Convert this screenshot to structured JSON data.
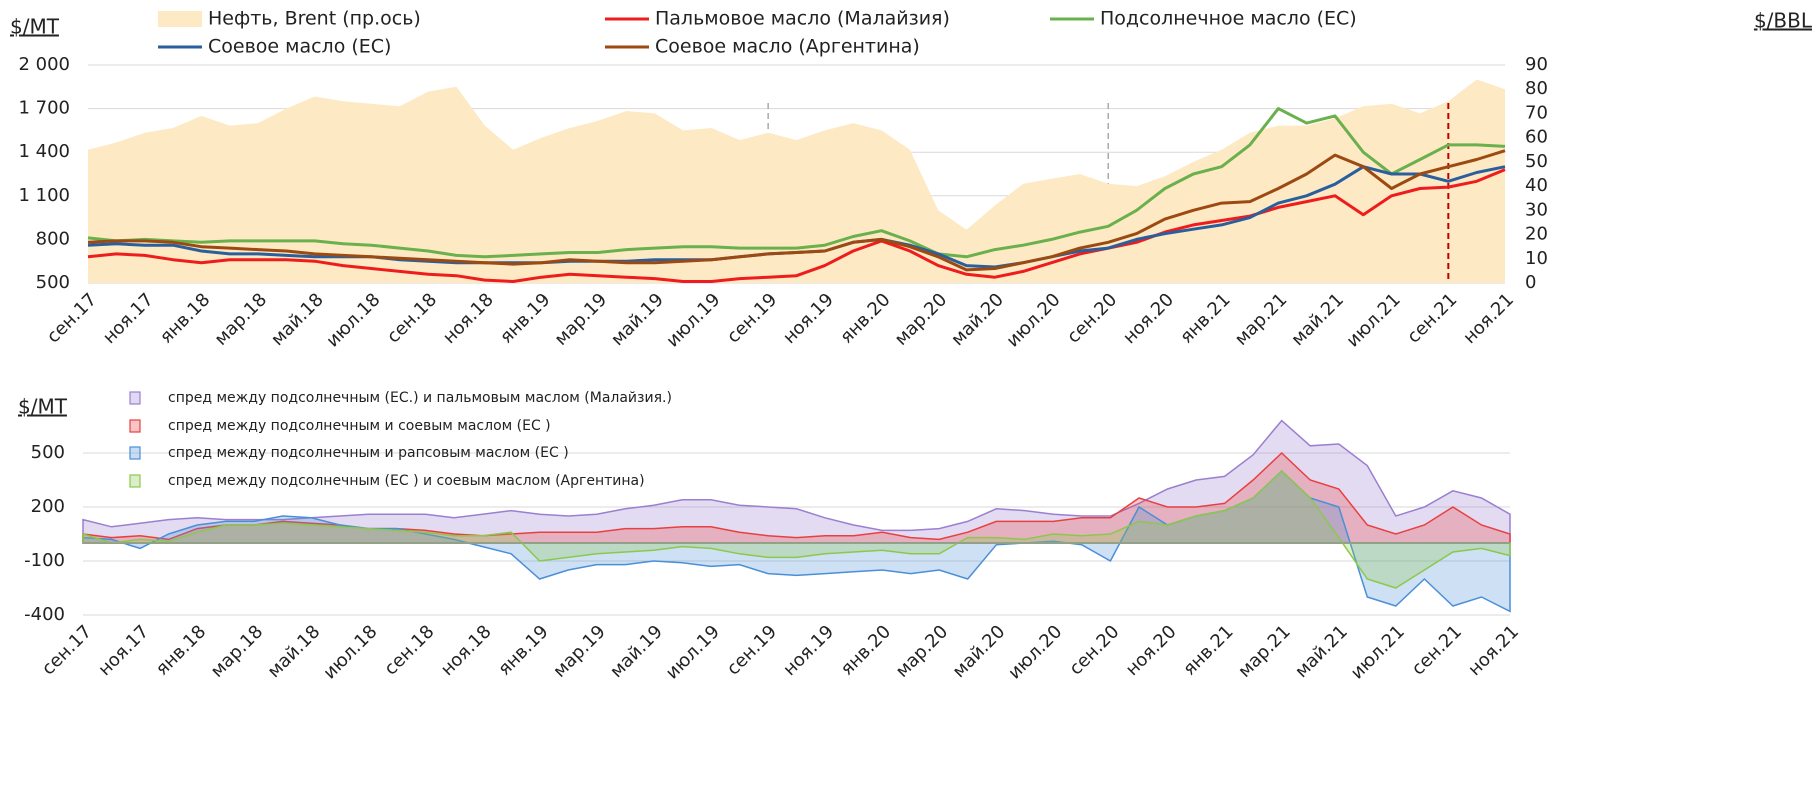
{
  "chart_data": [
    {
      "type": "line",
      "ylabel": "$/MT",
      "y2label": "$/BBL",
      "categories": [
        "сен.17",
        null,
        "ноя.17",
        null,
        "янв.18",
        null,
        "мар.18",
        null,
        "май.18",
        null,
        "июл.18",
        null,
        "сен.18",
        null,
        "ноя.18",
        null,
        "янв.19",
        null,
        "мар.19",
        null,
        "май.19",
        null,
        "июл.19",
        null,
        "сен.19",
        null,
        "ноя.19",
        null,
        "янв.20",
        null,
        "мар.20",
        null,
        "май.20",
        null,
        "июл.20",
        null,
        "сен.20",
        null,
        "ноя.20",
        null,
        "янв.21",
        null,
        "мар.21",
        null,
        "май.21",
        null,
        "июл.21",
        null,
        "сен.21",
        null,
        "ноя.21"
      ],
      "ylim": [
        500,
        2000
      ],
      "yticks": [
        500,
        800,
        {
          "value": 1100,
          "label": "1 100"
        },
        {
          "value": 1400,
          "label": "1 400"
        },
        {
          "value": 1700,
          "label": "1 700"
        },
        {
          "value": 2000,
          "label": "2 000"
        }
      ],
      "y2lim": [
        0,
        90
      ],
      "y2ticks": [
        0,
        10,
        20,
        30,
        40,
        50,
        60,
        70,
        80,
        90
      ],
      "grid": true,
      "series": [
        {
          "name": "Нефть, Brent (пр.ось)",
          "color": "#fdeac4",
          "axis": "y2",
          "area": true,
          "values": [
            55,
            58,
            62,
            64,
            69,
            65,
            66,
            72,
            77,
            75,
            74,
            73,
            79,
            81,
            65,
            55,
            60,
            64,
            67,
            71,
            70,
            63,
            64,
            59,
            62,
            59,
            63,
            66,
            63,
            55,
            30,
            22,
            32,
            41,
            43,
            45,
            41,
            40,
            44,
            50,
            55,
            62,
            65,
            65,
            68,
            73,
            74,
            70,
            75,
            84,
            80
          ]
        },
        {
          "name": "Пальмовое масло (Малайзия)",
          "color": "#ee1c1c",
          "values": [
            680,
            700,
            690,
            660,
            640,
            660,
            660,
            660,
            650,
            620,
            600,
            580,
            560,
            550,
            520,
            510,
            540,
            560,
            550,
            540,
            530,
            510,
            510,
            530,
            540,
            550,
            620,
            720,
            790,
            720,
            620,
            560,
            540,
            580,
            640,
            700,
            740,
            780,
            850,
            900,
            930,
            960,
            1020,
            1060,
            1100,
            970,
            1100,
            1150,
            1160,
            1200,
            1280
          ]
        },
        {
          "name": "Подсолнечное масло (ЕС)",
          "color": "#6ab04c",
          "values": [
            810,
            790,
            800,
            790,
            780,
            790,
            790,
            790,
            790,
            770,
            760,
            740,
            720,
            690,
            680,
            690,
            700,
            710,
            710,
            730,
            740,
            750,
            750,
            740,
            740,
            740,
            760,
            820,
            860,
            790,
            700,
            680,
            730,
            760,
            800,
            850,
            890,
            1000,
            1150,
            1250,
            1300,
            1450,
            1700,
            1600,
            1650,
            1400,
            1250,
            1350,
            1450,
            1450,
            1440
          ]
        },
        {
          "name": "Соевое масло (ЕС)",
          "color": "#2a5f9e",
          "values": [
            760,
            770,
            760,
            760,
            720,
            700,
            700,
            690,
            680,
            680,
            680,
            660,
            650,
            640,
            640,
            640,
            640,
            650,
            650,
            650,
            660,
            660,
            660,
            680,
            700,
            710,
            720,
            780,
            800,
            760,
            700,
            620,
            610,
            640,
            680,
            720,
            740,
            800,
            840,
            870,
            900,
            950,
            1050,
            1100,
            1180,
            1300,
            1250,
            1250,
            1200,
            1260,
            1300
          ]
        },
        {
          "name": "Соевое масло (Аргентина)",
          "color": "#9c4a12",
          "values": [
            780,
            790,
            790,
            780,
            750,
            740,
            730,
            720,
            700,
            690,
            680,
            670,
            660,
            650,
            640,
            630,
            640,
            660,
            650,
            640,
            640,
            650,
            660,
            680,
            700,
            710,
            720,
            780,
            800,
            750,
            680,
            590,
            600,
            640,
            680,
            740,
            780,
            840,
            940,
            1000,
            1050,
            1060,
            1150,
            1250,
            1380,
            1300,
            1150,
            1250,
            1300,
            1350,
            1410
          ]
        }
      ]
    },
    {
      "type": "area",
      "ylabel": "$/MT",
      "categories": [
        "сен.17",
        null,
        "ноя.17",
        null,
        "янв.18",
        null,
        "мар.18",
        null,
        "май.18",
        null,
        "июл.18",
        null,
        "сен.18",
        null,
        "ноя.18",
        null,
        "янв.19",
        null,
        "мар.19",
        null,
        "май.19",
        null,
        "июл.19",
        null,
        "сен.19",
        null,
        "ноя.19",
        null,
        "янв.20",
        null,
        "мар.20",
        null,
        "май.20",
        null,
        "июл.20",
        null,
        "сен.20",
        null,
        "ноя.20",
        null,
        "янв.21",
        null,
        "мар.21",
        null,
        "май.21",
        null,
        "июл.21",
        null,
        "сен.21",
        null,
        "ноя.21"
      ],
      "ylim": [
        -400,
        700
      ],
      "yticks": [
        -400,
        -100,
        200,
        500
      ],
      "grid": true,
      "series": [
        {
          "name": "спред между подсолнечным (ЕС.) и пальмовым маслом (Малайзия.)",
          "color": "#9b7fd0",
          "values": [
            130,
            90,
            110,
            130,
            140,
            130,
            130,
            130,
            140,
            150,
            160,
            160,
            160,
            140,
            160,
            180,
            160,
            150,
            160,
            190,
            210,
            240,
            240,
            210,
            200,
            190,
            140,
            100,
            70,
            70,
            80,
            120,
            190,
            180,
            160,
            150,
            150,
            220,
            300,
            350,
            370,
            490,
            680,
            540,
            550,
            430,
            150,
            200,
            290,
            250,
            160
          ]
        },
        {
          "name": "спред между подсолнечным и  соевым маслом (ЕС )",
          "color": "#e84040",
          "values": [
            50,
            30,
            40,
            20,
            80,
            100,
            100,
            120,
            110,
            100,
            80,
            80,
            70,
            50,
            40,
            50,
            60,
            60,
            60,
            80,
            80,
            90,
            90,
            60,
            40,
            30,
            40,
            40,
            60,
            30,
            20,
            60,
            120,
            120,
            120,
            140,
            140,
            250,
            200,
            200,
            220,
            350,
            500,
            350,
            300,
            100,
            50,
            100,
            200,
            100,
            50
          ]
        },
        {
          "name": "спред между подсолнечным и  рапсовым маслом (ЕС )",
          "color": "#4a8fd8",
          "values": [
            30,
            20,
            -30,
            50,
            100,
            120,
            120,
            150,
            140,
            100,
            80,
            80,
            50,
            20,
            -20,
            -60,
            -200,
            -150,
            -120,
            -120,
            -100,
            -110,
            -130,
            -120,
            -170,
            -180,
            -170,
            -160,
            -150,
            -170,
            -150,
            -200,
            -10,
            0,
            10,
            -10,
            -100,
            200,
            100,
            150,
            180,
            250,
            400,
            250,
            200,
            -300,
            -350,
            -200,
            -350,
            -300,
            -380
          ]
        },
        {
          "name": "спред между подсолнечным (ЕС ) и соевым маслом (Аргентина)",
          "color": "#8cc84b",
          "values": [
            50,
            0,
            20,
            10,
            60,
            100,
            100,
            110,
            100,
            90,
            80,
            70,
            60,
            40,
            40,
            60,
            -100,
            -80,
            -60,
            -50,
            -40,
            -20,
            -30,
            -60,
            -80,
            -80,
            -60,
            -50,
            -40,
            -60,
            -60,
            30,
            30,
            20,
            50,
            40,
            50,
            120,
            100,
            150,
            180,
            250,
            400,
            250,
            30,
            -200,
            -250,
            -150,
            -50,
            -30,
            -70
          ]
        }
      ]
    }
  ]
}
